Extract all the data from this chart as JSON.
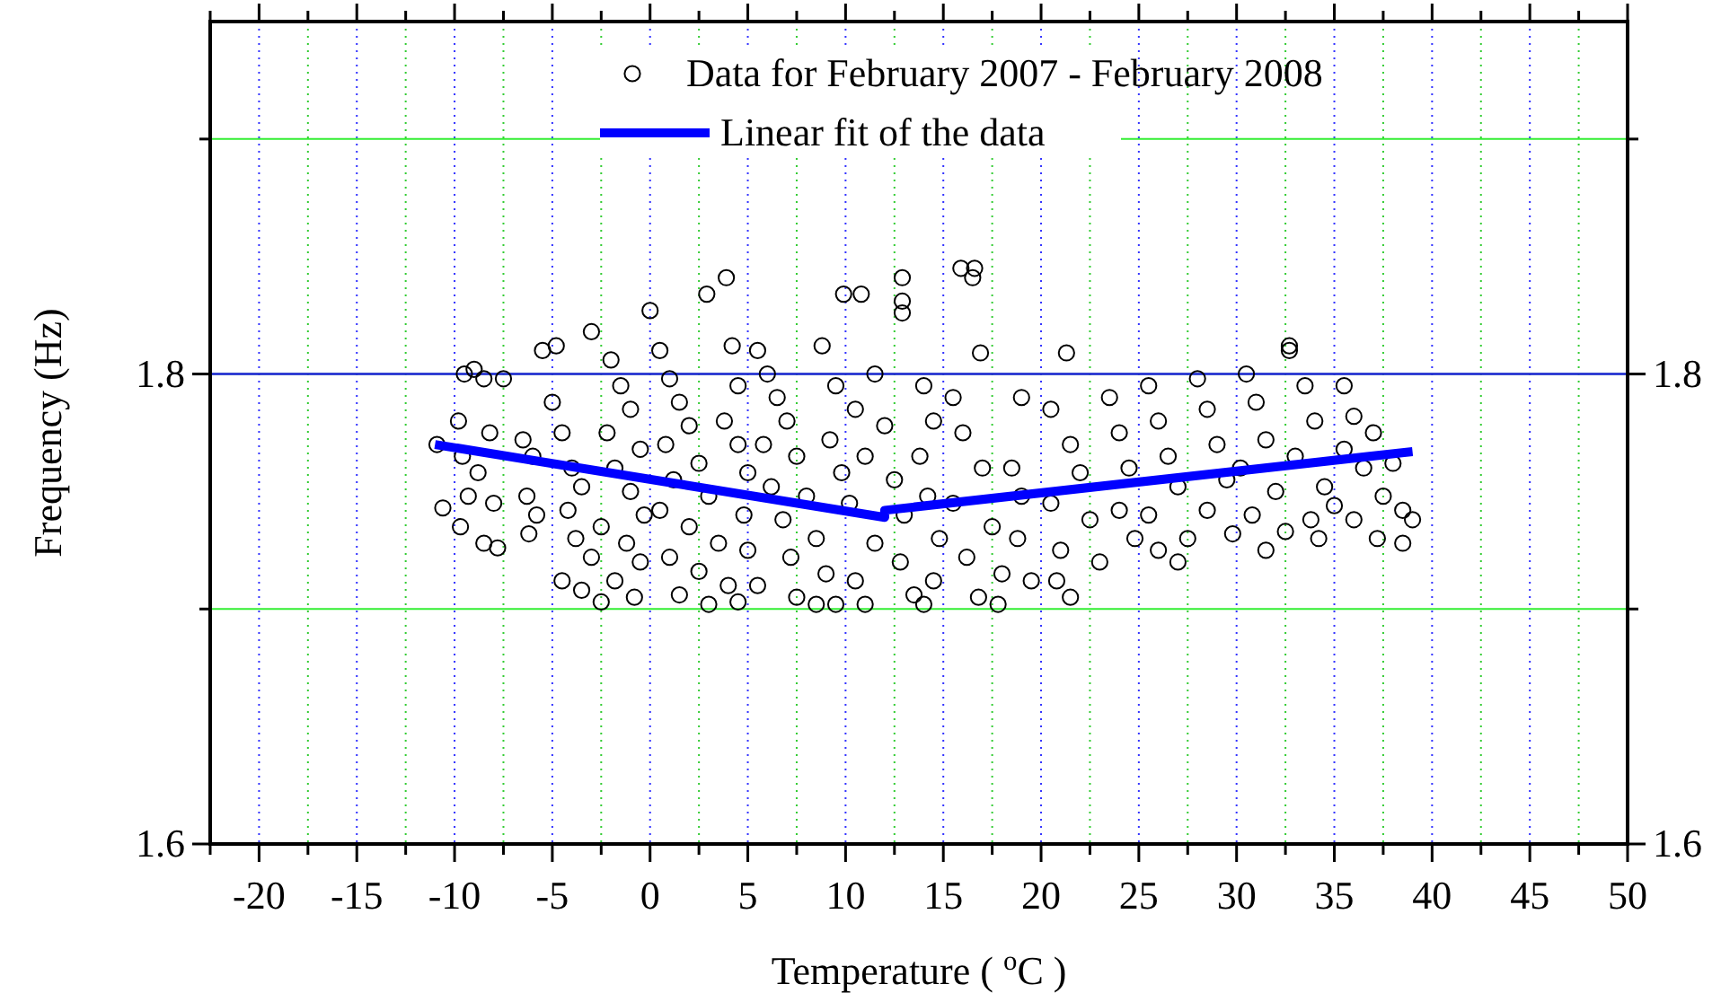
{
  "chart_data": {
    "type": "scatter",
    "xlabel": "Temperature ( $^{o}$C )",
    "ylabel": "Frequency (Hz)",
    "xlim": [
      -22.5,
      50
    ],
    "xticks": [
      {
        "value": -22.5,
        "label": null
      },
      -20,
      {
        "value": -17.5,
        "label": null
      },
      -15,
      {
        "value": -12.5,
        "label": null
      },
      -10,
      {
        "value": -7.5,
        "label": null
      },
      -5,
      {
        "value": -2.5,
        "label": null
      },
      0,
      {
        "value": 2.5,
        "label": null
      },
      5,
      {
        "value": 7.5,
        "label": null
      },
      10,
      {
        "value": 12.5,
        "label": null
      },
      15,
      {
        "value": 17.5,
        "label": null
      },
      20,
      {
        "value": 22.5,
        "label": null
      },
      25,
      {
        "value": 27.5,
        "label": null
      },
      30,
      {
        "value": 32.5,
        "label": null
      },
      35,
      {
        "value": 37.5,
        "label": null
      },
      40,
      {
        "value": 42.5,
        "label": null
      },
      45,
      {
        "value": 47.5,
        "label": null
      },
      50
    ],
    "ylim": [
      1.6,
      1.95
    ],
    "yticks": [
      1.6,
      {
        "value": 1.7,
        "label": null
      },
      1.8,
      {
        "value": 1.9,
        "label": null
      }
    ],
    "y2lim": [
      1.6,
      1.95
    ],
    "y2ticks": [
      1.6,
      {
        "value": 1.7,
        "label": null
      },
      1.8,
      {
        "value": 1.9,
        "label": null
      }
    ],
    "grid": true,
    "legend": "top",
    "marker": "circle",
    "ref_lines": [
      {
        "axis": "y",
        "value": 1.8,
        "color": "#2222dd"
      }
    ],
    "series": [
      {
        "name": "Data for February 2007 - February 2008",
        "color": "#000000",
        "x": [
          -10.9,
          -10.6,
          -9.5,
          -9,
          -8.5,
          -7.5,
          -9.8,
          -8.2,
          -9.6,
          -8.8,
          -9.3,
          -8,
          -9.7,
          -8.5,
          -7.8,
          -6.5,
          -6,
          -6.3,
          -5.8,
          -6.2,
          -5.5,
          -4.8,
          -5,
          -4.5,
          -4,
          -3.5,
          -4.2,
          -3.8,
          -3,
          -4.5,
          -3.5,
          -2.5,
          -2,
          -1.5,
          -1,
          -2.2,
          -0.5,
          -1.8,
          -1,
          -0.3,
          -2.5,
          -1.2,
          -0.5,
          -1.8,
          -0.8,
          0,
          0.5,
          -3,
          1,
          1.5,
          2,
          0.8,
          2.5,
          1.2,
          3,
          0.5,
          2,
          3.5,
          1,
          2.5,
          4,
          1.5,
          3,
          2.9,
          3.9,
          4.2,
          4.5,
          3.8,
          4.5,
          5,
          4.8,
          5,
          4.5,
          5.5,
          6,
          6.5,
          7,
          5.8,
          7.5,
          6.2,
          8,
          6.8,
          8.5,
          7.2,
          9,
          5.5,
          7.5,
          8.5,
          9.5,
          8.8,
          9.9,
          9.5,
          9.2,
          9.8,
          10.8,
          11.5,
          10.5,
          12,
          11,
          12.5,
          10.2,
          13,
          11.5,
          12.8,
          10.5,
          13.5,
          11,
          12.9,
          12.9,
          12.9,
          14,
          14.5,
          13.8,
          14.2,
          14.8,
          14.5,
          14,
          15.9,
          16.6,
          16.5,
          16.9,
          15.5,
          16,
          17,
          15.5,
          17.5,
          16.2,
          18,
          16.8,
          17.8,
          18.5,
          19,
          18.8,
          19.5,
          19,
          21.3,
          20.5,
          21.5,
          22,
          20.5,
          22.5,
          21,
          23,
          20.8,
          21.5,
          23.5,
          24,
          24.5,
          24,
          24.8,
          25.5,
          26,
          26.5,
          27,
          25.5,
          27.5,
          26,
          28,
          28.5,
          29,
          29.5,
          28.5,
          29.8,
          27,
          30.5,
          31,
          31.5,
          30.2,
          32,
          30.8,
          32.5,
          31.5,
          32.7,
          32.7,
          33.5,
          34,
          33,
          34.5,
          33.8,
          34.2,
          35.5,
          36,
          35.5,
          36.5,
          37,
          37.5,
          36,
          37.2,
          38,
          38.5,
          39,
          38.5,
          35
        ],
        "values": [
          1.77,
          1.743,
          1.8,
          1.802,
          1.798,
          1.798,
          1.78,
          1.775,
          1.765,
          1.758,
          1.748,
          1.745,
          1.735,
          1.728,
          1.726,
          1.772,
          1.765,
          1.748,
          1.74,
          1.732,
          1.81,
          1.812,
          1.788,
          1.775,
          1.76,
          1.752,
          1.742,
          1.73,
          1.722,
          1.712,
          1.708,
          1.703,
          1.806,
          1.795,
          1.785,
          1.775,
          1.768,
          1.76,
          1.75,
          1.74,
          1.735,
          1.728,
          1.72,
          1.712,
          1.705,
          1.827,
          1.81,
          1.818,
          1.798,
          1.788,
          1.778,
          1.77,
          1.762,
          1.755,
          1.748,
          1.742,
          1.735,
          1.728,
          1.722,
          1.716,
          1.71,
          1.706,
          1.702,
          1.834,
          1.841,
          1.812,
          1.795,
          1.78,
          1.77,
          1.758,
          1.74,
          1.725,
          1.703,
          1.81,
          1.8,
          1.79,
          1.78,
          1.77,
          1.765,
          1.752,
          1.748,
          1.738,
          1.73,
          1.722,
          1.715,
          1.71,
          1.705,
          1.702,
          1.702,
          1.812,
          1.834,
          1.795,
          1.772,
          1.758,
          1.834,
          1.8,
          1.785,
          1.778,
          1.765,
          1.755,
          1.745,
          1.74,
          1.728,
          1.72,
          1.712,
          1.706,
          1.702,
          1.841,
          1.831,
          1.826,
          1.795,
          1.78,
          1.765,
          1.748,
          1.73,
          1.712,
          1.702,
          1.845,
          1.845,
          1.841,
          1.809,
          1.79,
          1.775,
          1.76,
          1.745,
          1.735,
          1.722,
          1.715,
          1.705,
          1.702,
          1.76,
          1.748,
          1.73,
          1.712,
          1.79,
          1.809,
          1.785,
          1.77,
          1.758,
          1.745,
          1.738,
          1.725,
          1.72,
          1.712,
          1.705,
          1.79,
          1.775,
          1.76,
          1.742,
          1.73,
          1.795,
          1.78,
          1.765,
          1.752,
          1.74,
          1.73,
          1.725,
          1.798,
          1.785,
          1.77,
          1.755,
          1.742,
          1.732,
          1.72,
          1.8,
          1.788,
          1.772,
          1.76,
          1.75,
          1.74,
          1.733,
          1.725,
          1.81,
          1.812,
          1.795,
          1.78,
          1.765,
          1.752,
          1.738,
          1.73,
          1.795,
          1.782,
          1.768,
          1.76,
          1.775,
          1.748,
          1.738,
          1.73,
          1.762,
          1.742,
          1.738,
          1.728,
          1.744
        ]
      },
      {
        "name": "Linear fit of the data",
        "type": "line",
        "color": "#0000ff",
        "marker": "none",
        "line_style": "solid",
        "x": [
          -11,
          12,
          12,
          39
        ],
        "values": [
          1.77,
          1.739,
          1.742,
          1.767
        ]
      }
    ]
  }
}
